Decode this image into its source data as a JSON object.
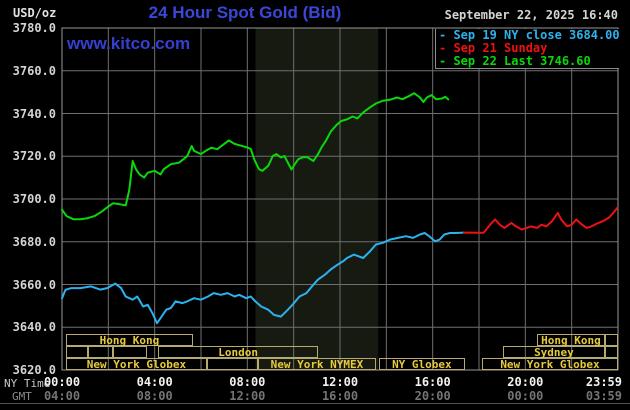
{
  "header": {
    "unit_label": "USD/oz",
    "title": "24 Hour Spot Gold (Bid)",
    "datetime": "September 22, 2025 16:40",
    "watermark": "www.kitco.com"
  },
  "axis_row_labels": {
    "ny": "NY Time",
    "gmt": "GMT"
  },
  "legend": {
    "items": [
      {
        "label": "- Sep 19 NY close 3684.00",
        "color": "#2cb2ee"
      },
      {
        "label": "- Sep 21 Sunday",
        "color": "#ee1111"
      },
      {
        "label": "- Sep 22 Last 3746.60",
        "color": "#0ad80a"
      }
    ]
  },
  "theme": {
    "background": "#000000",
    "grid": "#6f6f6f",
    "border": "#989898",
    "shaded_band": "#161a10",
    "title_blue": "#3a47d9",
    "session_border": "#b6aa6e",
    "session_text": "#e7ca3e"
  },
  "market_sessions": {
    "rows": [
      {
        "boxes": [
          {
            "label": "Hong Kong",
            "h1": 0.17,
            "h2": 5.65
          },
          {
            "label": "Hong Kong",
            "h1": 20.5,
            "h2": 23.44
          },
          {
            "label": "",
            "h1": 23.44,
            "h2": 24.0
          }
        ]
      },
      {
        "boxes": [
          {
            "label": "",
            "h1": 0.17,
            "h2": 1.14
          },
          {
            "label": "",
            "h1": 1.14,
            "h2": 2.21
          },
          {
            "label": "",
            "h1": 2.21,
            "h2": 3.66
          },
          {
            "label": "London",
            "h1": 4.16,
            "h2": 11.05
          },
          {
            "label": "Sydney",
            "h1": 19.03,
            "h2": 23.44
          },
          {
            "label": "",
            "h1": 23.44,
            "h2": 24.0
          }
        ]
      },
      {
        "boxes": [
          {
            "label": "New York Globex",
            "h1": 0.17,
            "h2": 6.26
          },
          {
            "label": "",
            "h1": 6.26,
            "h2": 8.46
          },
          {
            "label": "New York NYMEX",
            "h1": 8.46,
            "h2": 13.55
          },
          {
            "label": "NY Globex",
            "h1": 13.68,
            "h2": 17.39
          },
          {
            "label": "New York Globex",
            "h1": 18.13,
            "h2": 24.0
          }
        ]
      }
    ]
  },
  "chart_data": {
    "type": "line",
    "title": "24 Hour Spot Gold (Bid)",
    "ylabel": "USD/oz",
    "xlabel": "NY Time (hours)",
    "ylim": [
      3620,
      3780
    ],
    "xlim_hours": [
      0,
      24
    ],
    "grid": {
      "x_step_hours": 2,
      "y_step": 20,
      "grid_on": true
    },
    "shaded_session_hours": [
      8.35,
      13.65
    ],
    "y_tick_labels": [
      "3780.0",
      "3760.0",
      "3740.0",
      "3720.0",
      "3700.0",
      "3680.0",
      "3660.0",
      "3640.0",
      "3620.0"
    ],
    "x_ticks_ny": [
      {
        "label": "00:00",
        "hour": 0
      },
      {
        "label": "04:00",
        "hour": 4
      },
      {
        "label": "08:00",
        "hour": 8
      },
      {
        "label": "12:00",
        "hour": 12
      },
      {
        "label": "16:00",
        "hour": 16
      },
      {
        "label": "20:00",
        "hour": 20
      },
      {
        "label": "23:59",
        "hour": 24
      }
    ],
    "x_ticks_gmt": [
      {
        "label": "04:00",
        "hour": 0
      },
      {
        "label": "08:00",
        "hour": 4
      },
      {
        "label": "12:00",
        "hour": 8
      },
      {
        "label": "16:00",
        "hour": 12
      },
      {
        "label": "20:00",
        "hour": 16
      },
      {
        "label": "00:00",
        "hour": 20
      },
      {
        "label": "03:59",
        "hour": 24
      }
    ],
    "series": [
      {
        "name": "Sep 19 NY close",
        "close_value": 3684.0,
        "color": "#2cb2ee",
        "points": [
          [
            0,
            3653.5
          ],
          [
            0.15,
            3657.5
          ],
          [
            0.4,
            3658.3
          ],
          [
            0.8,
            3658.3
          ],
          [
            1.25,
            3659.1
          ],
          [
            1.65,
            3657.6
          ],
          [
            1.95,
            3658.3
          ],
          [
            2.3,
            3660.4
          ],
          [
            2.55,
            3658.3
          ],
          [
            2.75,
            3654.4
          ],
          [
            3.05,
            3652.9
          ],
          [
            3.25,
            3654.4
          ],
          [
            3.5,
            3649.7
          ],
          [
            3.7,
            3650.5
          ],
          [
            3.9,
            3646.6
          ],
          [
            4.1,
            3641.9
          ],
          [
            4.3,
            3645
          ],
          [
            4.5,
            3648.2
          ],
          [
            4.7,
            3649
          ],
          [
            4.9,
            3652.1
          ],
          [
            5.2,
            3651.3
          ],
          [
            5.4,
            3652.1
          ],
          [
            5.7,
            3653.6
          ],
          [
            6,
            3652.9
          ],
          [
            6.3,
            3654.4
          ],
          [
            6.55,
            3656
          ],
          [
            6.85,
            3655.2
          ],
          [
            7.15,
            3656
          ],
          [
            7.45,
            3654.4
          ],
          [
            7.65,
            3655.2
          ],
          [
            7.95,
            3653.6
          ],
          [
            8.15,
            3654.4
          ],
          [
            8.35,
            3652.1
          ],
          [
            8.6,
            3649.7
          ],
          [
            8.9,
            3648.2
          ],
          [
            9.15,
            3645.8
          ],
          [
            9.45,
            3645
          ],
          [
            9.75,
            3648.2
          ],
          [
            9.95,
            3650.5
          ],
          [
            10.25,
            3654.4
          ],
          [
            10.55,
            3656
          ],
          [
            10.85,
            3659.9
          ],
          [
            11.05,
            3662.3
          ],
          [
            11.35,
            3664.6
          ],
          [
            11.6,
            3667
          ],
          [
            11.9,
            3669.3
          ],
          [
            12.15,
            3671
          ],
          [
            12.3,
            3672.4
          ],
          [
            12.6,
            3674
          ],
          [
            13,
            3672.4
          ],
          [
            13.3,
            3675.6
          ],
          [
            13.55,
            3678.7
          ],
          [
            13.85,
            3679.5
          ],
          [
            14.15,
            3681
          ],
          [
            14.5,
            3681.8
          ],
          [
            14.85,
            3682.6
          ],
          [
            15.15,
            3681.8
          ],
          [
            15.45,
            3683.4
          ],
          [
            15.65,
            3684.1
          ],
          [
            15.85,
            3682.6
          ],
          [
            16.1,
            3680.2
          ],
          [
            16.3,
            3681
          ],
          [
            16.5,
            3683.4
          ],
          [
            16.75,
            3684.1
          ],
          [
            17,
            3684.1
          ],
          [
            17.35,
            3684.3
          ]
        ]
      },
      {
        "name": "Sep 21 Sunday",
        "color": "#ee1111",
        "points": [
          [
            17.35,
            3684.3
          ],
          [
            18.2,
            3684.2
          ],
          [
            18.55,
            3688.8
          ],
          [
            18.7,
            3690.4
          ],
          [
            18.9,
            3688
          ],
          [
            19.1,
            3686.5
          ],
          [
            19.4,
            3688.8
          ],
          [
            19.6,
            3687.2
          ],
          [
            19.85,
            3685.7
          ],
          [
            20.05,
            3686.5
          ],
          [
            20.25,
            3687.2
          ],
          [
            20.5,
            3686.5
          ],
          [
            20.7,
            3688
          ],
          [
            20.9,
            3687.2
          ],
          [
            21.15,
            3689.6
          ],
          [
            21.4,
            3693.5
          ],
          [
            21.55,
            3690.4
          ],
          [
            21.8,
            3687.2
          ],
          [
            22,
            3688
          ],
          [
            22.2,
            3690.4
          ],
          [
            22.45,
            3688
          ],
          [
            22.65,
            3686.5
          ],
          [
            22.85,
            3687.2
          ],
          [
            23.15,
            3688.8
          ],
          [
            23.35,
            3689.6
          ],
          [
            23.6,
            3691.2
          ],
          [
            23.8,
            3693.5
          ],
          [
            23.97,
            3695.9
          ]
        ]
      },
      {
        "name": "Sep 22 Last",
        "last_value": 3746.6,
        "color": "#0ad80a",
        "points": [
          [
            0,
            3695
          ],
          [
            0.2,
            3692
          ],
          [
            0.5,
            3690.5
          ],
          [
            0.8,
            3690.5
          ],
          [
            1.1,
            3691
          ],
          [
            1.4,
            3692
          ],
          [
            1.7,
            3694
          ],
          [
            2,
            3696.5
          ],
          [
            2.2,
            3698
          ],
          [
            2.5,
            3697.5
          ],
          [
            2.75,
            3697
          ],
          [
            2.9,
            3704
          ],
          [
            3.05,
            3717.8
          ],
          [
            3.2,
            3713.8
          ],
          [
            3.35,
            3711.5
          ],
          [
            3.55,
            3710
          ],
          [
            3.7,
            3712.3
          ],
          [
            4,
            3713.2
          ],
          [
            4.25,
            3711.5
          ],
          [
            4.4,
            3714
          ],
          [
            4.7,
            3716.3
          ],
          [
            5.05,
            3717
          ],
          [
            5.4,
            3720
          ],
          [
            5.6,
            3724.8
          ],
          [
            5.7,
            3722.5
          ],
          [
            6,
            3721
          ],
          [
            6.2,
            3722.5
          ],
          [
            6.45,
            3724
          ],
          [
            6.7,
            3723.3
          ],
          [
            7,
            3725.8
          ],
          [
            7.2,
            3727.4
          ],
          [
            7.45,
            3725.8
          ],
          [
            7.75,
            3724.9
          ],
          [
            8,
            3724.1
          ],
          [
            8.15,
            3723.4
          ],
          [
            8.3,
            3718.5
          ],
          [
            8.5,
            3714
          ],
          [
            8.65,
            3713.2
          ],
          [
            8.9,
            3715.5
          ],
          [
            9.1,
            3720.1
          ],
          [
            9.25,
            3721
          ],
          [
            9.45,
            3719.4
          ],
          [
            9.6,
            3720.1
          ],
          [
            9.75,
            3717
          ],
          [
            9.9,
            3713.8
          ],
          [
            10.05,
            3716.3
          ],
          [
            10.2,
            3718.6
          ],
          [
            10.4,
            3719.5
          ],
          [
            10.6,
            3719.5
          ],
          [
            10.85,
            3717.8
          ],
          [
            11.05,
            3721
          ],
          [
            11.2,
            3724.1
          ],
          [
            11.4,
            3727.4
          ],
          [
            11.6,
            3731.5
          ],
          [
            11.85,
            3734.6
          ],
          [
            12.05,
            3736.5
          ],
          [
            12.3,
            3737.3
          ],
          [
            12.55,
            3738.6
          ],
          [
            12.75,
            3737.7
          ],
          [
            13,
            3740.5
          ],
          [
            13.3,
            3742.9
          ],
          [
            13.55,
            3744.7
          ],
          [
            13.85,
            3746
          ],
          [
            14.15,
            3746.4
          ],
          [
            14.45,
            3747.5
          ],
          [
            14.7,
            3746.7
          ],
          [
            15,
            3748.3
          ],
          [
            15.2,
            3749.5
          ],
          [
            15.45,
            3747.5
          ],
          [
            15.6,
            3745.4
          ],
          [
            15.75,
            3747.5
          ],
          [
            15.95,
            3748.6
          ],
          [
            16.15,
            3746.7
          ],
          [
            16.4,
            3747
          ],
          [
            16.55,
            3747.8
          ],
          [
            16.67,
            3746.6
          ]
        ]
      }
    ]
  }
}
